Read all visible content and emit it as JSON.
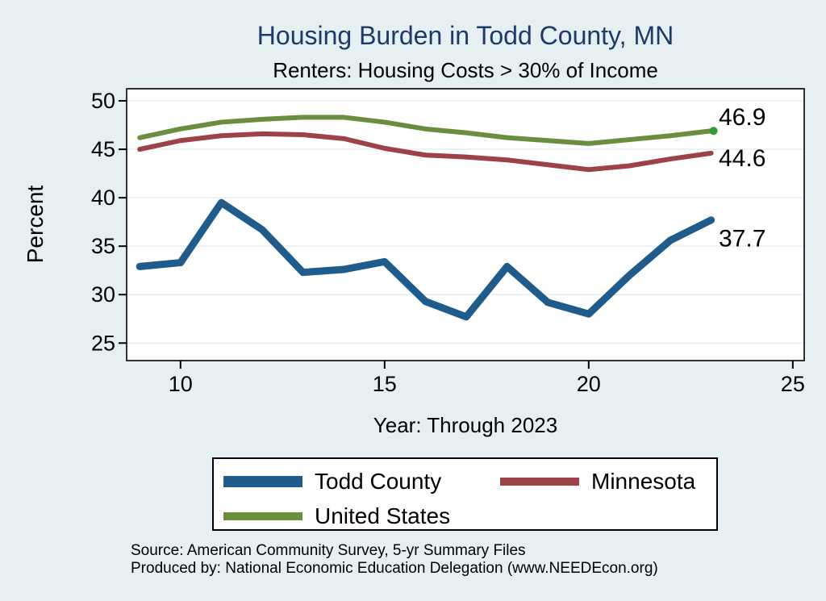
{
  "colors": {
    "background": "#e6eff2",
    "plot_background": "#ffffff",
    "gridline": "#e4edf3",
    "axis": "#000000",
    "title": "#1e3a6b",
    "todd_county": "#1f5c8b",
    "minnesota": "#9d4247",
    "united_states": "#6b8e3e",
    "end_dot_green": "#2d9e33"
  },
  "source_line1": "Source: American Community Survey, 5-yr Summary Files",
  "source_line2": "Produced by: National Economic Education Delegation (www.NEEDEcon.org)",
  "legend": {
    "items": [
      {
        "label": "Todd County",
        "color": "#1f5c8b"
      },
      {
        "label": "Minnesota",
        "color": "#9d4247"
      },
      {
        "label": "United States",
        "color": "#6b8e3e"
      }
    ]
  },
  "chart_data": {
    "type": "line",
    "title": "Housing Burden in Todd County, MN",
    "subtitle": "Renters: Housing Costs > 30% of Income",
    "xlabel": "Year: Through 2023",
    "ylabel": "Percent",
    "grid": "horizontal",
    "legend_position": "bottom",
    "x": [
      9,
      10,
      11,
      12,
      13,
      14,
      15,
      16,
      17,
      18,
      19,
      20,
      21,
      22,
      23
    ],
    "x_ticks": [
      10,
      15,
      20,
      25
    ],
    "y_ticks": [
      25,
      30,
      35,
      40,
      45,
      50
    ],
    "xlim": [
      8.68,
      25.28
    ],
    "ylim": [
      23.19,
      51.25
    ],
    "series": [
      {
        "name": "Todd County",
        "color": "#1f5c8b",
        "line_width": 9,
        "end_label": "37.7",
        "values": [
          32.9,
          33.3,
          39.5,
          36.7,
          32.3,
          32.6,
          33.4,
          29.3,
          27.7,
          32.9,
          29.2,
          28.0,
          32.0,
          35.6,
          37.7
        ]
      },
      {
        "name": "Minnesota",
        "color": "#9d4247",
        "line_width": 6,
        "end_label": "44.6",
        "values": [
          45.0,
          45.9,
          46.4,
          46.6,
          46.5,
          46.1,
          45.1,
          44.4,
          44.2,
          43.9,
          43.4,
          42.9,
          43.3,
          44.0,
          44.6
        ]
      },
      {
        "name": "United States",
        "color": "#6b8e3e",
        "line_width": 6,
        "end_label": "46.9",
        "end_dot_color": "#2d9e33",
        "values": [
          46.2,
          47.1,
          47.8,
          48.1,
          48.3,
          48.3,
          47.8,
          47.1,
          46.7,
          46.2,
          45.9,
          45.6,
          46.0,
          46.4,
          46.9
        ]
      }
    ]
  }
}
